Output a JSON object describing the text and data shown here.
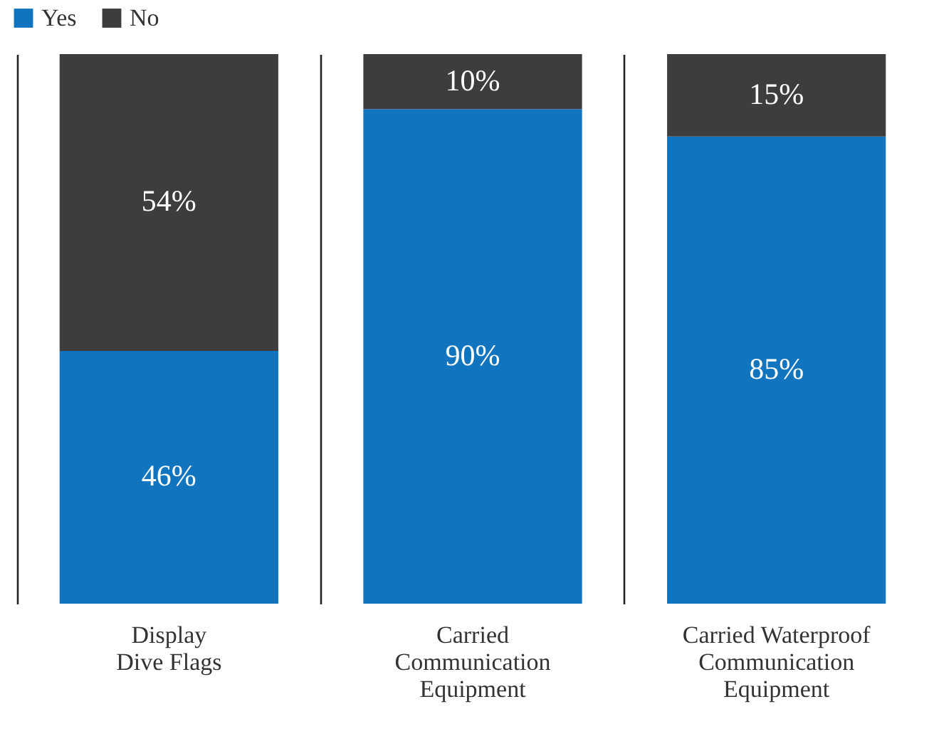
{
  "chart_data": {
    "type": "bar",
    "stacked": true,
    "categories": [
      "Display Dive Flags",
      "Carried Communication Equipment",
      "Carried Waterproof Communication Equipment"
    ],
    "series": [
      {
        "name": "Yes",
        "color": "#1174bf",
        "values": [
          46,
          90,
          85
        ],
        "value_labels": [
          "46%",
          "90%",
          "85%"
        ]
      },
      {
        "name": "No",
        "color": "#3d3d3d",
        "values": [
          54,
          10,
          15
        ],
        "value_labels": [
          "54%",
          "10%",
          "15%"
        ]
      }
    ],
    "legend": "top left",
    "grid": "x"
  }
}
